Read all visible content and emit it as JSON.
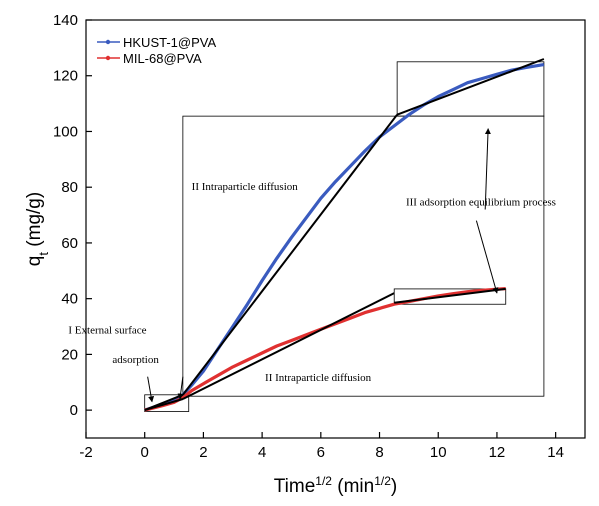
{
  "chart_data": {
    "type": "line",
    "xlabel": {
      "main": "Time",
      "sup1": "1/2",
      "mid": " (min",
      "sup2": "1/2",
      "end": ")"
    },
    "ylabel": {
      "main": "q",
      "sub": "t",
      "end": " (mg/g)"
    },
    "xlim": [
      -2,
      15
    ],
    "ylim": [
      -10,
      140
    ],
    "xticks": [
      -2,
      0,
      2,
      4,
      6,
      8,
      10,
      12,
      14
    ],
    "yticks": [
      0,
      20,
      40,
      60,
      80,
      100,
      120,
      140
    ],
    "grid": false,
    "legend_position": "top-left",
    "series": [
      {
        "name": "HKUST-1@PVA",
        "color": "#3a5bbf",
        "points": [
          [
            0,
            0
          ],
          [
            0.3,
            1
          ],
          [
            0.6,
            2.2
          ],
          [
            1.0,
            3.8
          ],
          [
            1.3,
            5.5
          ],
          [
            1.6,
            9
          ],
          [
            2.0,
            14
          ],
          [
            2.5,
            22
          ],
          [
            3,
            30
          ],
          [
            3.5,
            38
          ],
          [
            4,
            46.5
          ],
          [
            4.5,
            54.5
          ],
          [
            5,
            62
          ],
          [
            5.5,
            69
          ],
          [
            6,
            76
          ],
          [
            6.5,
            82
          ],
          [
            7,
            87.5
          ],
          [
            7.5,
            93
          ],
          [
            8,
            98
          ],
          [
            8.5,
            102
          ],
          [
            9,
            106
          ],
          [
            9.5,
            109.5
          ],
          [
            10,
            112.5
          ],
          [
            10.5,
            115
          ],
          [
            11,
            117.5
          ],
          [
            11.5,
            119
          ],
          [
            12,
            120.5
          ],
          [
            12.5,
            122
          ],
          [
            13,
            123
          ],
          [
            13.6,
            124
          ]
        ]
      },
      {
        "name": "MIL-68@PVA",
        "color": "#e03030",
        "points": [
          [
            0,
            0
          ],
          [
            0.3,
            0.8
          ],
          [
            0.6,
            1.6
          ],
          [
            1.0,
            2.8
          ],
          [
            1.3,
            4.5
          ],
          [
            1.6,
            7
          ],
          [
            2.0,
            9.5
          ],
          [
            2.5,
            12.5
          ],
          [
            3,
            15.5
          ],
          [
            3.5,
            18
          ],
          [
            4,
            20.5
          ],
          [
            4.5,
            23
          ],
          [
            5,
            25
          ],
          [
            5.5,
            27
          ],
          [
            6,
            29
          ],
          [
            6.5,
            31
          ],
          [
            7,
            33
          ],
          [
            7.5,
            35
          ],
          [
            8,
            36.5
          ],
          [
            8.5,
            38
          ],
          [
            9,
            39
          ],
          [
            9.5,
            40
          ],
          [
            10,
            41
          ],
          [
            10.5,
            41.8
          ],
          [
            11,
            42.5
          ],
          [
            11.5,
            43
          ],
          [
            12,
            43.4
          ],
          [
            12.3,
            43.6
          ]
        ]
      }
    ],
    "fit_lines": [
      {
        "name": "HKUST fit I",
        "color": "#000000",
        "points": [
          [
            0,
            0
          ],
          [
            1.3,
            5.5
          ]
        ]
      },
      {
        "name": "HKUST fit II",
        "color": "#000000",
        "points": [
          [
            1.3,
            5.5
          ],
          [
            8.6,
            106
          ]
        ]
      },
      {
        "name": "HKUST fit III",
        "color": "#000000",
        "points": [
          [
            8.6,
            106
          ],
          [
            13.6,
            126
          ]
        ]
      },
      {
        "name": "MIL fit I",
        "color": "#000000",
        "points": [
          [
            0,
            0
          ],
          [
            1.3,
            4
          ]
        ]
      },
      {
        "name": "MIL fit II",
        "color": "#000000",
        "points": [
          [
            1.3,
            4
          ],
          [
            8.5,
            42
          ]
        ]
      },
      {
        "name": "MIL fit III",
        "color": "#000000",
        "points": [
          [
            8.5,
            38.5
          ],
          [
            12.3,
            43.5
          ]
        ]
      }
    ],
    "region_boxes": [
      {
        "x0": 1.3,
        "x1": 13.6,
        "y0": 5,
        "y1": 105.5
      },
      {
        "x0": 8.6,
        "x1": 13.6,
        "y0": 105.5,
        "y1": 125
      },
      {
        "x0": 8.5,
        "x1": 12.3,
        "y0": 38,
        "y1": 43.5
      },
      {
        "x0": 0,
        "x1": 1.5,
        "y0": -0.5,
        "y1": 5.5
      }
    ],
    "annotations": [
      {
        "text": "II Intraparticle diffusion",
        "x": 1.6,
        "y": 79
      },
      {
        "text": "III adsorption equilibrium process",
        "x": 8.9,
        "y": 73.5
      },
      {
        "text": "I External surface",
        "x": -2.6,
        "y": 27.5
      },
      {
        "text": "adsorption",
        "x": -1.1,
        "y": 17
      },
      {
        "text": "II Intraparticle diffusion",
        "x": 4.1,
        "y": 10.5
      }
    ],
    "arrows": [
      {
        "from": [
          11.6,
          72
        ],
        "to": [
          11.7,
          101
        ]
      },
      {
        "from": [
          11.3,
          68
        ],
        "to": [
          12.0,
          42
        ]
      },
      {
        "from": [
          0.1,
          12
        ],
        "to": [
          0.25,
          3
        ]
      },
      {
        "from": [
          1.3,
          12
        ],
        "to": [
          1.2,
          4
        ]
      }
    ]
  }
}
